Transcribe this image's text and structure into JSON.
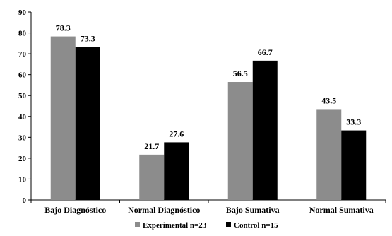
{
  "chart_data": {
    "type": "bar",
    "categories": [
      "Bajo Diagnóstico",
      "Normal Diagnóstico",
      "Bajo Sumativa",
      "Normal Sumativa"
    ],
    "series": [
      {
        "name": "Experimental n=23",
        "values": [
          78.3,
          21.7,
          56.5,
          43.5
        ],
        "labels": [
          "78.3",
          "21.7",
          "56.5",
          "43.5"
        ],
        "color": "#8c8c8c"
      },
      {
        "name": "Control n=15",
        "values": [
          73.3,
          27.6,
          66.7,
          33.3
        ],
        "labels": [
          "73.3",
          "27.6",
          "66.7",
          "33.3"
        ],
        "color": "#000000"
      }
    ],
    "ylim": [
      0,
      90
    ],
    "yticks": [
      0,
      10,
      20,
      30,
      40,
      50,
      60,
      70,
      80,
      90
    ],
    "ytick_labels": [
      "0",
      "10",
      "20",
      "30",
      "40",
      "50",
      "60",
      "70",
      "80",
      "90"
    ],
    "grid": false,
    "legend_position": "bottom"
  }
}
